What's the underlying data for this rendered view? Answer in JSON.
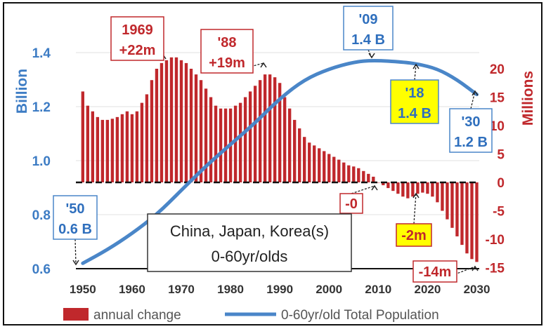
{
  "chart_data": {
    "type": "bar+line",
    "x_ticks": [
      1950,
      1960,
      1970,
      1980,
      1990,
      2000,
      2010,
      2020,
      2030
    ],
    "xlim": [
      1948.6,
      2030.5
    ],
    "y_left": {
      "label": "Billion",
      "ticks": [
        "0.6",
        "0.8",
        "1.0",
        "1.2",
        "1.4"
      ],
      "ylim": [
        0.6,
        1.4
      ]
    },
    "y_right": {
      "label": "Millions",
      "ticks": [
        "20",
        "15",
        "10",
        "5",
        "0",
        "-5",
        "-10",
        "-15"
      ],
      "ylim": [
        -15,
        20
      ]
    },
    "title_box": {
      "line1": "China, Japan, Korea(s)",
      "line2": "0-60yr/olds"
    },
    "series": [
      {
        "name": "annual change",
        "type": "bar",
        "color": "#c0282c",
        "x": [
          1950,
          1951,
          1952,
          1953,
          1954,
          1955,
          1956,
          1957,
          1958,
          1959,
          1960,
          1961,
          1962,
          1963,
          1964,
          1965,
          1966,
          1967,
          1968,
          1969,
          1970,
          1971,
          1972,
          1973,
          1974,
          1975,
          1976,
          1977,
          1978,
          1979,
          1980,
          1981,
          1982,
          1983,
          1984,
          1985,
          1986,
          1987,
          1988,
          1989,
          1990,
          1991,
          1992,
          1993,
          1994,
          1995,
          1996,
          1997,
          1998,
          1999,
          2000,
          2001,
          2002,
          2003,
          2004,
          2005,
          2006,
          2007,
          2008,
          2009,
          2010,
          2011,
          2012,
          2013,
          2014,
          2015,
          2016,
          2017,
          2018,
          2019,
          2020,
          2021,
          2022,
          2023,
          2024,
          2025,
          2026,
          2027,
          2028,
          2029,
          2030
        ],
        "values": [
          16,
          13.5,
          12.5,
          11.5,
          11,
          11,
          11.2,
          11.5,
          12,
          12.5,
          12,
          12.5,
          14,
          15.5,
          18,
          20,
          21,
          21.5,
          22,
          22,
          21.5,
          21,
          20,
          19,
          18,
          16.5,
          15,
          13.5,
          13,
          13,
          13,
          13.5,
          14,
          15,
          16,
          17,
          18,
          19,
          19,
          18.5,
          17.5,
          15,
          13,
          11,
          9.5,
          8,
          7,
          6.5,
          6,
          5.5,
          5,
          4.5,
          4,
          3.5,
          3,
          2.8,
          2.5,
          2,
          1.5,
          1,
          0,
          -0.5,
          -1,
          -1.5,
          -2,
          -2.5,
          -2.8,
          -2.5,
          -2,
          -1.8,
          -2,
          -2.5,
          -3.5,
          -5,
          -6.5,
          -8,
          -9.5,
          -11,
          -12.5,
          -13.5,
          -14
        ]
      },
      {
        "name": "0-60yr/old Total Population",
        "type": "line",
        "color": "#4a86c8",
        "x": [
          1950,
          1955,
          1960,
          1965,
          1970,
          1975,
          1980,
          1985,
          1990,
          1995,
          2000,
          2005,
          2009,
          2015,
          2018,
          2022,
          2026,
          2030
        ],
        "values": [
          0.62,
          0.67,
          0.73,
          0.8,
          0.89,
          0.98,
          1.06,
          1.14,
          1.23,
          1.3,
          1.34,
          1.365,
          1.372,
          1.365,
          1.358,
          1.34,
          1.3,
          1.245
        ]
      }
    ],
    "annotations": [
      {
        "id": "a1969",
        "line1": "1969",
        "line2": "+22m",
        "color": "red"
      },
      {
        "id": "a88",
        "line1": "'88",
        "line2": "+19m",
        "color": "red"
      },
      {
        "id": "a09",
        "line1": "'09",
        "line2": "1.4 B",
        "color": "blue"
      },
      {
        "id": "a18",
        "line1": "'18",
        "line2": "1.4 B",
        "color": "blue",
        "fill": "#ffff00"
      },
      {
        "id": "a30",
        "line1": "'30",
        "line2": "1.2 B",
        "color": "blue"
      },
      {
        "id": "a50",
        "line1": "'50",
        "line2": "0.6 B",
        "color": "blue"
      },
      {
        "id": "azero",
        "line1": "-0",
        "color": "red"
      },
      {
        "id": "a2m",
        "line1": "-2m",
        "color": "red",
        "fill": "#ffff00"
      },
      {
        "id": "a14m",
        "line1": "-14m",
        "color": "red"
      }
    ],
    "legend": {
      "position": "bottom",
      "entries": [
        "annual change",
        "0-60yr/old Total Population"
      ]
    },
    "grid": true
  }
}
